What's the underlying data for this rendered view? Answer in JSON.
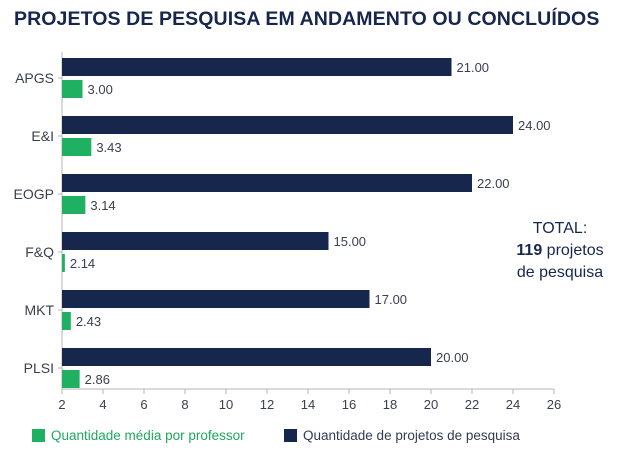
{
  "colors": {
    "navy": "#17264d",
    "green": "#1fb061",
    "axis": "#b5b5b5",
    "text": "#3a3f4d"
  },
  "chart_data": {
    "type": "bar",
    "orientation": "horizontal",
    "title": "PROJETOS DE PESQUISA EM ANDAMENTO OU CONCLUÍDOS",
    "categories": [
      "APGS",
      "E&I",
      "EOGP",
      "F&Q",
      "MKT",
      "PLSI"
    ],
    "series": [
      {
        "name": "Quantidade de projetos de pesquisa",
        "color": "#17264d",
        "values": [
          21.0,
          24.0,
          22.0,
          15.0,
          17.0,
          20.0
        ],
        "labels": [
          "21.00",
          "24.00",
          "22.00",
          "15.00",
          "17.00",
          "20.00"
        ]
      },
      {
        "name": "Quantidade média por professor",
        "color": "#1fb061",
        "values": [
          3.0,
          3.43,
          3.14,
          2.14,
          2.43,
          2.86
        ],
        "labels": [
          "3.00",
          "3.43",
          "3.14",
          "2.14",
          "2.43",
          "2.86"
        ]
      }
    ],
    "xlim": [
      2,
      26
    ],
    "xticks": [
      "2",
      "4",
      "6",
      "8",
      "10",
      "12",
      "14",
      "16",
      "18",
      "20",
      "22",
      "24",
      "26"
    ],
    "grid": false,
    "legend": "bottom"
  },
  "annotation": {
    "total_label": "TOTAL:",
    "total_value": "119",
    "total_suffix": " projetos",
    "total_line3": "de pesquisa"
  },
  "legend": {
    "green_label": "Quantidade média por professor",
    "navy_label": "Quantidade de projetos de pesquisa"
  }
}
